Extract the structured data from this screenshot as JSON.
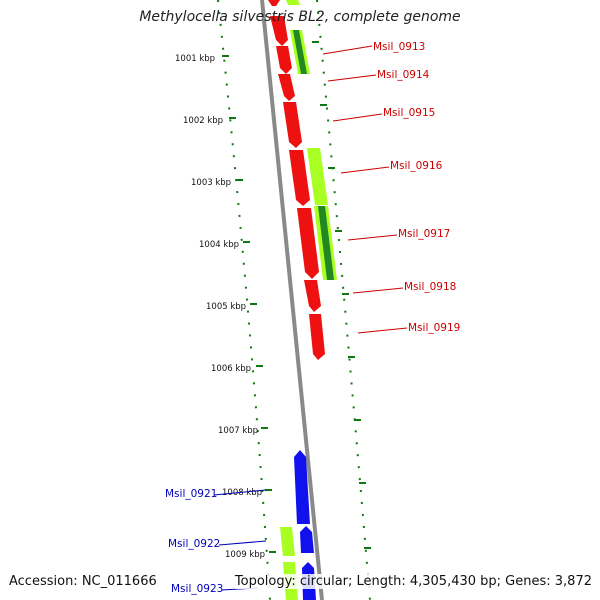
{
  "title": "Methylocella silvestris BL2, complete genome",
  "footer": {
    "accession": "Accession: NC_011666",
    "summary": "Topology: circular; Length: 4,305,430 bp; Genes: 3,872"
  },
  "colors": {
    "forward_cds": "#ee1111",
    "reverse_cds": "#1111ee",
    "lime_feature": "#aaff22",
    "dark_feature": "#228822",
    "tick": "#117711",
    "backbone": "#888888",
    "label_red": "#cc0000",
    "label_blue": "#0000bb"
  },
  "ticks": [
    {
      "label": "1001 kbp"
    },
    {
      "label": "1002 kbp"
    },
    {
      "label": "1003 kbp"
    },
    {
      "label": "1004 kbp"
    },
    {
      "label": "1005 kbp"
    },
    {
      "label": "1006 kbp"
    },
    {
      "label": "1007 kbp"
    },
    {
      "label": "1008 kbp"
    },
    {
      "label": "1009 kbp"
    }
  ],
  "genes": [
    {
      "name": "Msil_0913",
      "strand": "+"
    },
    {
      "name": "Msil_0914",
      "strand": "+"
    },
    {
      "name": "Msil_0915",
      "strand": "+"
    },
    {
      "name": "Msil_0916",
      "strand": "+"
    },
    {
      "name": "Msil_0917",
      "strand": "+"
    },
    {
      "name": "Msil_0918",
      "strand": "+"
    },
    {
      "name": "Msil_0919",
      "strand": "+"
    },
    {
      "name": "Msil_0921",
      "strand": "-"
    },
    {
      "name": "Msil_0922",
      "strand": "-"
    },
    {
      "name": "Msil_0923",
      "strand": "-"
    }
  ]
}
